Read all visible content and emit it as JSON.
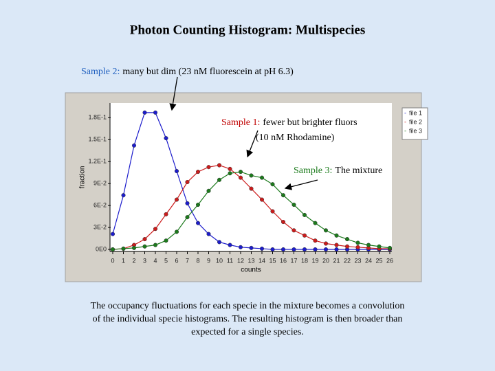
{
  "title": "Photon Counting Histogram: Multispecies",
  "caption": [
    "The occupancy fluctuations for each specie in the mixture becomes a convolution",
    "of the individual specie histograms. The resulting histogram is then broader than",
    "expected for a single species."
  ],
  "chart_data": {
    "type": "line",
    "xlabel": "counts",
    "ylabel": "fraction",
    "x": [
      0,
      1,
      2,
      3,
      4,
      5,
      6,
      7,
      8,
      9,
      10,
      11,
      12,
      13,
      14,
      15,
      16,
      17,
      18,
      19,
      20,
      21,
      22,
      23,
      24,
      25,
      26
    ],
    "xlim": [
      0,
      26
    ],
    "xticks": [
      0,
      1,
      2,
      3,
      4,
      5,
      6,
      7,
      8,
      9,
      10,
      11,
      12,
      13,
      14,
      15,
      16,
      17,
      18,
      19,
      20,
      21,
      22,
      23,
      24,
      25,
      26
    ],
    "ylim": [
      0,
      0.2
    ],
    "yticks": [
      {
        "value": 0,
        "label": "0E0"
      },
      {
        "value": 0.03,
        "label": "3E-2"
      },
      {
        "value": 0.06,
        "label": "6E-2"
      },
      {
        "value": 0.09,
        "label": "9E-2"
      },
      {
        "value": 0.12,
        "label": "1.2E-1"
      },
      {
        "value": 0.15,
        "label": "1.5E-1"
      },
      {
        "value": 0.18,
        "label": "1.8E-1"
      }
    ],
    "legend": "top-right",
    "series": [
      {
        "name": "file 1",
        "color": "#1c1ccc",
        "values": [
          0.021,
          0.074,
          0.142,
          0.187,
          0.187,
          0.152,
          0.107,
          0.063,
          0.036,
          0.021,
          0.01,
          0.006,
          0.003,
          0.002,
          0.001,
          0,
          0,
          0,
          0,
          0,
          0,
          0,
          0,
          0,
          0,
          0,
          0
        ]
      },
      {
        "name": "file 2",
        "color": "#cc1c1c",
        "values": [
          0,
          0.001,
          0.006,
          0.014,
          0.028,
          0.048,
          0.068,
          0.092,
          0.106,
          0.1125,
          0.115,
          0.11,
          0.098,
          0.083,
          0.068,
          0.052,
          0.0375,
          0.026,
          0.019,
          0.012,
          0.008,
          0.006,
          0.004,
          0.003,
          0.002,
          0.001,
          0.001
        ]
      },
      {
        "name": "file 3",
        "color": "#1c7a1c",
        "values": [
          0,
          0.001,
          0.002,
          0.004,
          0.006,
          0.012,
          0.024,
          0.044,
          0.061,
          0.08,
          0.095,
          0.104,
          0.106,
          0.101,
          0.098,
          0.089,
          0.074,
          0.061,
          0.047,
          0.036,
          0.026,
          0.019,
          0.014,
          0.009,
          0.006,
          0.004,
          0.002
        ]
      }
    ],
    "annotations": [
      {
        "label": "Sample 2:",
        "color": "#1f5fbf",
        "lines": [
          "many but dim (23 nM fluorescein at pH 6.3)"
        ]
      },
      {
        "label": "Sample 1:",
        "color": "#c00000",
        "lines": [
          "fewer but brighter fluors",
          "(10 nM Rhodamine)"
        ]
      },
      {
        "label": "Sample 3:",
        "color": "#1a7a1a",
        "lines": [
          "The mixture"
        ]
      }
    ]
  }
}
